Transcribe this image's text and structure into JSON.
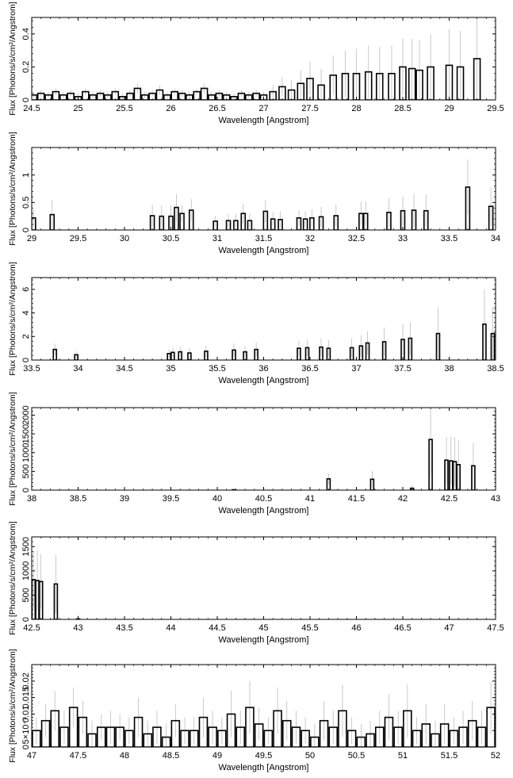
{
  "chart_data": [
    {
      "type": "bar",
      "xlabel": "Wavelength [Angstrom]",
      "ylabel": "Flux [Photons/s/cm²/Angstrom]",
      "xlim": [
        24.5,
        29.5
      ],
      "ylim": [
        0,
        0.5
      ],
      "xticks": [
        "24.5",
        "25",
        "25.5",
        "26",
        "26.5",
        "27",
        "27.5",
        "28",
        "28.5",
        "29",
        "29.5"
      ],
      "yticks": [
        "0",
        "0.2",
        "0.4"
      ],
      "grid": false,
      "x": [
        24.52,
        24.6,
        24.68,
        24.76,
        24.84,
        24.92,
        25.0,
        25.08,
        25.16,
        25.24,
        25.32,
        25.4,
        25.48,
        25.56,
        25.64,
        25.72,
        25.8,
        25.88,
        25.96,
        26.04,
        26.12,
        26.2,
        26.28,
        26.36,
        26.44,
        26.52,
        26.6,
        26.68,
        26.76,
        26.84,
        26.92,
        27.0,
        27.1,
        27.2,
        27.3,
        27.4,
        27.5,
        27.62,
        27.75,
        27.88,
        28.0,
        28.13,
        28.25,
        28.38,
        28.5,
        28.6,
        28.68,
        28.8,
        29.0,
        29.12,
        29.3
      ],
      "values": [
        0.03,
        0.04,
        0.03,
        0.05,
        0.03,
        0.04,
        0.02,
        0.05,
        0.03,
        0.04,
        0.03,
        0.05,
        0.02,
        0.04,
        0.07,
        0.03,
        0.04,
        0.06,
        0.03,
        0.05,
        0.04,
        0.03,
        0.05,
        0.07,
        0.03,
        0.04,
        0.03,
        0.02,
        0.04,
        0.03,
        0.04,
        0.03,
        0.05,
        0.08,
        0.06,
        0.1,
        0.13,
        0.09,
        0.15,
        0.16,
        0.16,
        0.17,
        0.16,
        0.16,
        0.2,
        0.19,
        0.18,
        0.2,
        0.21,
        0.2,
        0.25
      ],
      "errors": [
        0.02,
        0.02,
        0.02,
        0.02,
        0.02,
        0.02,
        0.02,
        0.02,
        0.02,
        0.02,
        0.02,
        0.02,
        0.02,
        0.02,
        0.03,
        0.02,
        0.02,
        0.03,
        0.02,
        0.02,
        0.02,
        0.02,
        0.02,
        0.03,
        0.02,
        0.02,
        0.02,
        0.02,
        0.02,
        0.02,
        0.02,
        0.02,
        0.04,
        0.06,
        0.06,
        0.08,
        0.1,
        0.1,
        0.12,
        0.14,
        0.15,
        0.16,
        0.16,
        0.17,
        0.17,
        0.18,
        0.18,
        0.2,
        0.22,
        0.22,
        0.26
      ]
    },
    {
      "type": "bar",
      "xlabel": "Wavelength [Angstrom]",
      "ylabel": "Flux [Photons/s/cm²/Angstrom]",
      "xlim": [
        29,
        34
      ],
      "ylim": [
        0,
        1.5
      ],
      "xticks": [
        "29",
        "29.5",
        "30",
        "30.5",
        "31",
        "31.5",
        "32",
        "32.5",
        "33",
        "33.5",
        "34"
      ],
      "yticks": [
        "0",
        "0.5",
        "1"
      ],
      "grid": false,
      "x": [
        29.02,
        29.22,
        30.3,
        30.4,
        30.5,
        30.56,
        30.62,
        30.72,
        30.98,
        31.12,
        31.2,
        31.28,
        31.35,
        31.52,
        31.6,
        31.68,
        31.88,
        31.95,
        32.02,
        32.12,
        32.28,
        32.55,
        32.6,
        32.85,
        33.0,
        33.12,
        33.25,
        33.7,
        33.95
      ],
      "values": [
        0.22,
        0.28,
        0.26,
        0.25,
        0.25,
        0.41,
        0.3,
        0.36,
        0.16,
        0.17,
        0.17,
        0.3,
        0.17,
        0.34,
        0.2,
        0.19,
        0.22,
        0.2,
        0.22,
        0.24,
        0.26,
        0.3,
        0.3,
        0.32,
        0.35,
        0.36,
        0.35,
        0.78,
        0.43
      ],
      "errors": [
        0.15,
        0.26,
        0.2,
        0.2,
        0.2,
        0.25,
        0.15,
        0.2,
        0.1,
        0.12,
        0.12,
        0.18,
        0.12,
        0.2,
        0.12,
        0.15,
        0.14,
        0.14,
        0.16,
        0.18,
        0.2,
        0.22,
        0.22,
        0.26,
        0.26,
        0.3,
        0.3,
        0.5,
        0.35
      ]
    },
    {
      "type": "bar",
      "xlabel": "Wavelength [Angstrom]",
      "ylabel": "Flux [Photons/s/cm²/Angstrom]",
      "xlim": [
        33.5,
        38.5
      ],
      "ylim": [
        0,
        7
      ],
      "xticks": [
        "33.5",
        "34",
        "34.5",
        "35",
        "35.5",
        "36",
        "36.5",
        "37",
        "37.5",
        "38",
        "38.5"
      ],
      "yticks": [
        "0",
        "2",
        "4",
        "6"
      ],
      "grid": false,
      "x": [
        33.75,
        33.98,
        34.98,
        35.02,
        35.1,
        35.2,
        35.38,
        35.68,
        35.8,
        35.92,
        36.38,
        36.47,
        36.62,
        36.7,
        36.95,
        37.05,
        37.12,
        37.3,
        37.5,
        37.58,
        37.88,
        38.38,
        38.47
      ],
      "values": [
        0.9,
        0.45,
        0.55,
        0.65,
        0.7,
        0.6,
        0.75,
        0.85,
        0.7,
        0.9,
        1.0,
        1.05,
        1.1,
        1.0,
        1.05,
        1.2,
        1.45,
        1.55,
        1.75,
        1.85,
        2.25,
        3.05,
        2.25
      ],
      "errors": [
        0.5,
        0.3,
        0.35,
        0.4,
        0.4,
        0.4,
        0.5,
        0.55,
        0.5,
        0.6,
        0.65,
        0.7,
        0.75,
        0.7,
        0.8,
        0.9,
        1.0,
        1.2,
        1.3,
        1.4,
        2.2,
        2.9,
        2.3
      ]
    },
    {
      "type": "bar",
      "xlabel": "Wavelength [Angstrom]",
      "ylabel": "Flux [Photons/s/cm²/Angstrom]",
      "xlim": [
        38,
        43
      ],
      "ylim": [
        0,
        2200
      ],
      "xticks": [
        "38",
        "38.5",
        "39",
        "39.5",
        "40",
        "40.5",
        "41",
        "41.5",
        "42",
        "42.5",
        "43"
      ],
      "yticks": [
        "0",
        "500",
        "1000",
        "1500",
        "2000"
      ],
      "grid": false,
      "x": [
        40.18,
        41.2,
        41.67,
        42.1,
        42.3,
        42.47,
        42.52,
        42.56,
        42.6,
        42.76
      ],
      "values": [
        10,
        300,
        290,
        50,
        1350,
        800,
        780,
        760,
        680,
        650
      ],
      "errors": [
        10,
        150,
        220,
        80,
        900,
        620,
        640,
        650,
        650,
        600
      ]
    },
    {
      "type": "bar",
      "xlabel": "Wavelength [Angstrom]",
      "ylabel": "Flux [Photons/s/cm²/Angstrom]",
      "xlim": [
        42.5,
        47.5
      ],
      "ylim": [
        0,
        1700
      ],
      "xticks": [
        "42.5",
        "43",
        "43.5",
        "44",
        "44.5",
        "45",
        "45.5",
        "46",
        "46.5",
        "47",
        "47.5"
      ],
      "yticks": [
        "0",
        "500",
        "1000",
        "1500"
      ],
      "grid": false,
      "x": [
        42.52,
        42.56,
        42.6,
        42.76,
        43.0
      ],
      "values": [
        820,
        800,
        780,
        730,
        10
      ],
      "errors": [
        600,
        620,
        560,
        600,
        80
      ]
    },
    {
      "type": "bar",
      "xlabel": "Wavelength [Angstrom]",
      "ylabel": "Flux [Photons/s/cm²/Angstrom]",
      "xlim": [
        47,
        52
      ],
      "ylim": [
        0,
        0.025
      ],
      "xticks": [
        "47",
        "47.5",
        "48",
        "48.5",
        "49",
        "49.5",
        "50",
        "50.5",
        "51",
        "51.5",
        "52"
      ],
      "yticks": [
        "0",
        "5×10⁻³",
        "0.01",
        "0.015",
        "0.02"
      ],
      "grid": false,
      "x": [
        47.05,
        47.15,
        47.25,
        47.35,
        47.45,
        47.55,
        47.65,
        47.75,
        47.85,
        47.95,
        48.05,
        48.15,
        48.25,
        48.35,
        48.45,
        48.55,
        48.65,
        48.75,
        48.85,
        48.95,
        49.05,
        49.15,
        49.25,
        49.35,
        49.45,
        49.55,
        49.65,
        49.75,
        49.85,
        49.95,
        50.05,
        50.15,
        50.25,
        50.35,
        50.45,
        50.55,
        50.65,
        50.75,
        50.85,
        50.95,
        51.05,
        51.15,
        51.25,
        51.35,
        51.45,
        51.55,
        51.65,
        51.75,
        51.85,
        51.95
      ],
      "values": [
        0.005,
        0.008,
        0.011,
        0.006,
        0.012,
        0.009,
        0.004,
        0.006,
        0.006,
        0.006,
        0.005,
        0.009,
        0.004,
        0.006,
        0.003,
        0.008,
        0.005,
        0.005,
        0.009,
        0.006,
        0.005,
        0.01,
        0.006,
        0.012,
        0.007,
        0.005,
        0.011,
        0.008,
        0.006,
        0.005,
        0.003,
        0.008,
        0.006,
        0.011,
        0.005,
        0.003,
        0.004,
        0.006,
        0.009,
        0.006,
        0.011,
        0.005,
        0.007,
        0.004,
        0.007,
        0.005,
        0.006,
        0.008,
        0.006,
        0.012
      ],
      "errors": [
        0.004,
        0.005,
        0.006,
        0.005,
        0.006,
        0.005,
        0.004,
        0.004,
        0.005,
        0.004,
        0.004,
        0.006,
        0.004,
        0.005,
        0.004,
        0.005,
        0.004,
        0.004,
        0.006,
        0.005,
        0.004,
        0.007,
        0.005,
        0.008,
        0.005,
        0.004,
        0.007,
        0.006,
        0.005,
        0.004,
        0.004,
        0.006,
        0.005,
        0.008,
        0.004,
        0.004,
        0.004,
        0.005,
        0.007,
        0.005,
        0.008,
        0.004,
        0.006,
        0.004,
        0.006,
        0.004,
        0.005,
        0.006,
        0.005,
        0.008
      ]
    }
  ]
}
